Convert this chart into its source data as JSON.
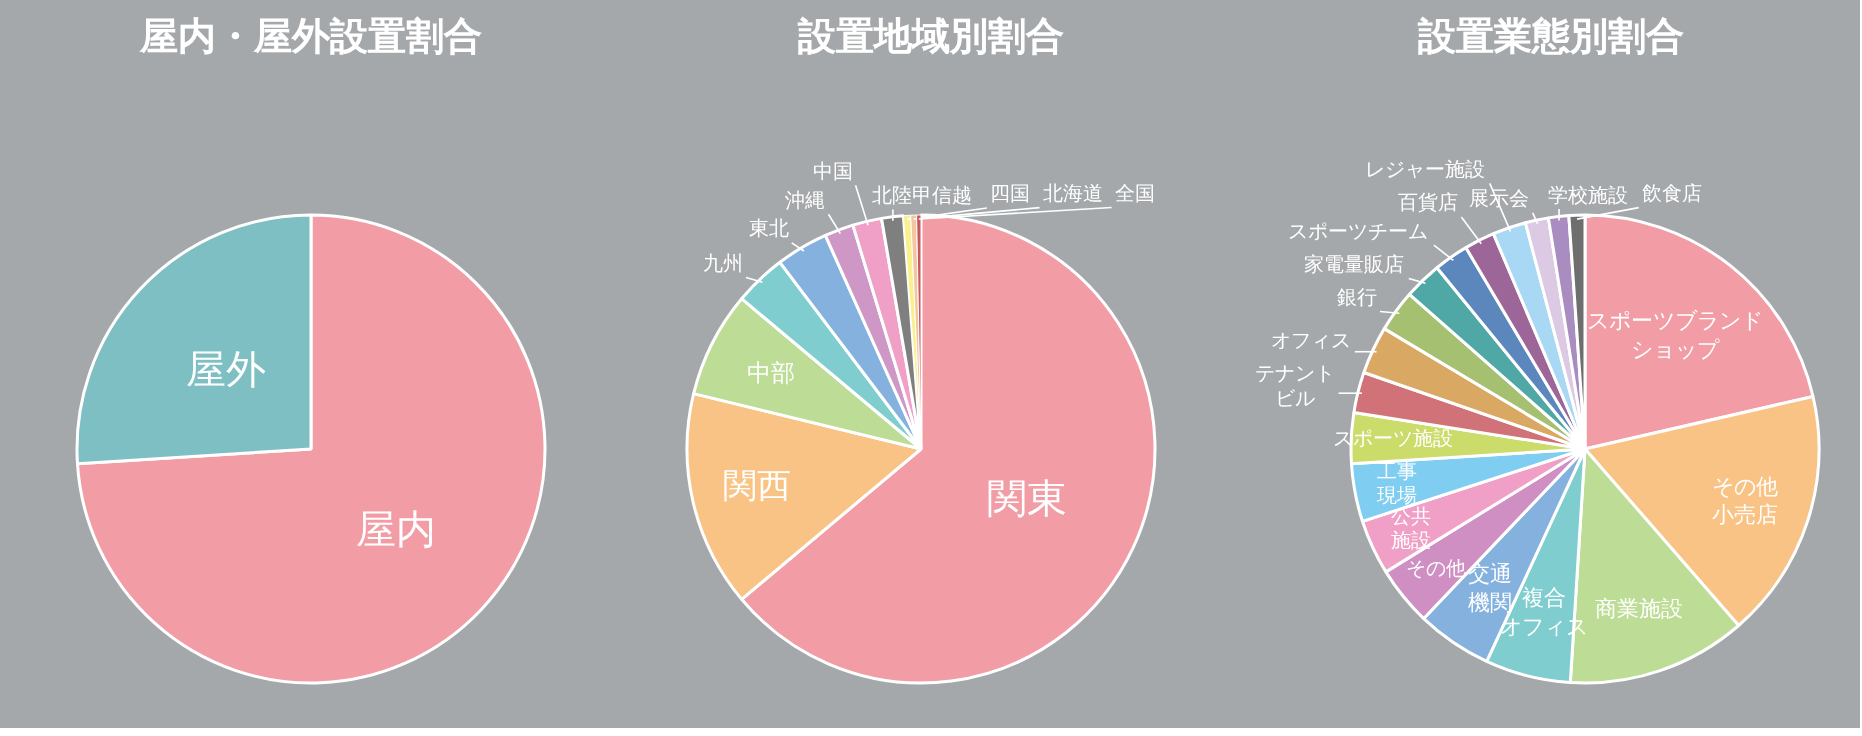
{
  "chart_data": [
    {
      "type": "pie",
      "title": "屋内・屋外設置割合",
      "categories": [
        "屋内",
        "屋外"
      ],
      "values": [
        74,
        26
      ],
      "colors": [
        "#f29ca6",
        "#7ebfc3"
      ]
    },
    {
      "type": "pie",
      "title": "設置地域別割合",
      "categories": [
        "関東",
        "関西",
        "中部",
        "九州",
        "東北",
        "沖縄",
        "中国",
        "北陸甲信越",
        "四国",
        "北海道",
        "全国"
      ],
      "values": [
        63.9,
        14.9,
        7.3,
        3.6,
        3.6,
        2.0,
        2.0,
        1.5,
        0.5,
        0.4,
        0.3
      ],
      "colors": [
        "#f29ca6",
        "#f8c385",
        "#bddc95",
        "#80cdd0",
        "#85b1de",
        "#cf97c6",
        "#f0a0c6",
        "#7f7f7f",
        "#faf08c",
        "#f3c6a0",
        "#c9575b"
      ]
    },
    {
      "type": "pie",
      "title": "設置業態別割合",
      "categories": [
        "スポーツブランドショップ",
        "その他小売店",
        "商業施設",
        "複合オフィス",
        "交通機関",
        "その他",
        "公共施設",
        "工事現場",
        "スポーツ施設",
        "テナントビル",
        "オフィス",
        "銀行",
        "家電量販店",
        "スポーツチーム",
        "百貨店",
        "レジャー施設",
        "展示会",
        "学校施設",
        "飲食店"
      ],
      "values": [
        21.4,
        17.2,
        12.4,
        5.9,
        5.2,
        4.1,
        3.8,
        4.0,
        3.5,
        2.8,
        3.3,
        2.9,
        2.6,
        2.4,
        2.1,
        2.3,
        1.6,
        1.4,
        1.1
      ],
      "colors": [
        "#f29ca6",
        "#f8c385",
        "#bddc95",
        "#80cdd0",
        "#85b1de",
        "#cf8fc2",
        "#f0a0c6",
        "#7fcdf0",
        "#cbdc6a",
        "#d07277",
        "#d9a862",
        "#a4c070",
        "#4fa8a5",
        "#5b87bd",
        "#9d6699",
        "#a8d8f3",
        "#dccae4",
        "#a98cc0",
        "#6e6e6e"
      ]
    }
  ]
}
